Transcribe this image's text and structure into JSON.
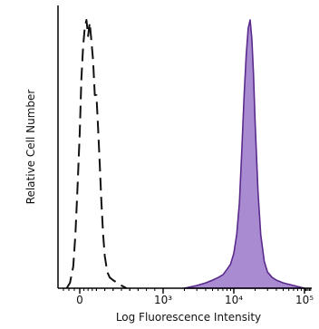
{
  "chart_data": {
    "type": "area",
    "title": "",
    "xlabel": "Log Fluorescence Intensity",
    "ylabel": "Relative Cell Number",
    "x_scale": "biexponential",
    "xlim": [
      -200,
      200000
    ],
    "ylim": [
      0,
      1.05
    ],
    "grid": false,
    "legend": "none",
    "x_ticks": [
      {
        "value": 0,
        "label": "0"
      },
      {
        "value": 1000,
        "label": "10³"
      },
      {
        "value": 10000,
        "label": "10⁴"
      },
      {
        "value": 100000,
        "label": "10⁵"
      }
    ],
    "colors": {
      "control_line": "#111111",
      "stained_fill": "#a98bd1",
      "stained_line": "#5a2a8c",
      "axis": "#000000"
    },
    "series": [
      {
        "style": "dashed-outline",
        "x": [
          -120,
          -90,
          -60,
          -40,
          -20,
          0,
          20,
          40,
          60,
          80,
          100,
          120,
          140,
          160,
          180,
          200,
          220,
          240,
          260,
          280,
          300,
          330,
          360,
          400,
          450,
          500,
          560
        ],
        "y": [
          0.0,
          0.02,
          0.08,
          0.2,
          0.38,
          0.58,
          0.78,
          0.9,
          0.97,
          1.0,
          0.94,
          0.99,
          0.92,
          0.85,
          0.72,
          0.72,
          0.6,
          0.46,
          0.32,
          0.2,
          0.12,
          0.06,
          0.04,
          0.03,
          0.02,
          0.01,
          0.0
        ]
      },
      {
        "style": "filled",
        "x": [
          2000,
          3000,
          4000,
          5000,
          6000,
          7000,
          8000,
          9000,
          10000,
          11000,
          12000,
          13000,
          14000,
          15000,
          16000,
          17000,
          18000,
          19000,
          20000,
          22000,
          24000,
          27000,
          30000,
          35000,
          40000,
          50000,
          70000,
          100000
        ],
        "y": [
          0.0,
          0.01,
          0.02,
          0.03,
          0.04,
          0.05,
          0.07,
          0.09,
          0.13,
          0.2,
          0.32,
          0.52,
          0.72,
          0.87,
          0.97,
          1.0,
          0.93,
          0.8,
          0.62,
          0.36,
          0.2,
          0.1,
          0.06,
          0.04,
          0.03,
          0.02,
          0.01,
          0.0
        ]
      }
    ]
  }
}
